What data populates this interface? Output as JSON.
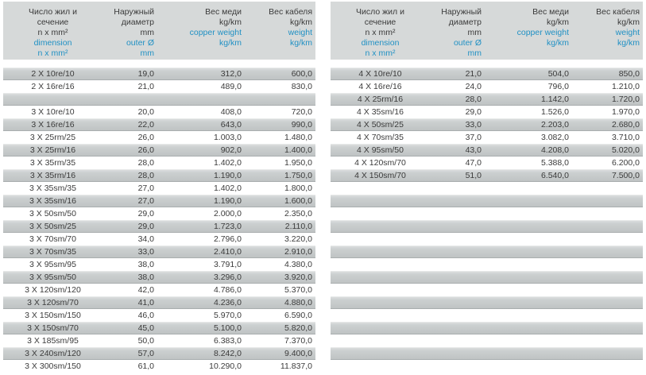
{
  "colors": {
    "header_bg": "#d6d9d9",
    "row_gray": "#c6caca",
    "text_black": "#3b3b3b",
    "text_blue": "#2191c4"
  },
  "tables": [
    {
      "id": "left",
      "header": [
        {
          "key": "dimension",
          "black": [
            "Число жил и",
            "сечение",
            "n x mm²"
          ],
          "blue": [
            "dimension",
            "n x mm²"
          ]
        },
        {
          "key": "outer-diameter",
          "black": [
            "Наружный",
            "диаметр",
            "mm"
          ],
          "blue": [
            "outer Ø",
            "mm"
          ]
        },
        {
          "key": "copper-weight",
          "black": [
            "Вес меди",
            "kg/km"
          ],
          "blue": [
            "copper weight",
            "kg/km"
          ]
        },
        {
          "key": "cable-weight",
          "black": [
            "Вес кабеля",
            "kg/km"
          ],
          "blue": [
            "weight",
            "kg/km"
          ]
        }
      ],
      "rows": [
        [
          "2 X 10re/10",
          "19,0",
          "312,0",
          "600,0"
        ],
        [
          "2 X 16re/16",
          "21,0",
          "489,0",
          "830,0"
        ],
        [
          "",
          "",
          "",
          ""
        ],
        [
          "3 X 10re/10",
          "20,0",
          "408,0",
          "720,0"
        ],
        [
          "3 X 16re/16",
          "22,0",
          "643,0",
          "990,0"
        ],
        [
          "3 X 25rm/25",
          "26,0",
          "1.003,0",
          "1.480,0"
        ],
        [
          "3 X 25rm/16",
          "26,0",
          "902,0",
          "1.400,0"
        ],
        [
          "3 X 35rm/35",
          "28,0",
          "1.402,0",
          "1.950,0"
        ],
        [
          "3 X 35rm/16",
          "28,0",
          "1.190,0",
          "1.750,0"
        ],
        [
          "3 X 35sm/35",
          "27,0",
          "1.402,0",
          "1.800,0"
        ],
        [
          "3 X 35sm/16",
          "27,0",
          "1.190,0",
          "1.600,0"
        ],
        [
          "3 X 50sm/50",
          "29,0",
          "2.000,0",
          "2.350,0"
        ],
        [
          "3 X 50sm/25",
          "29,0",
          "1.723,0",
          "2.110,0"
        ],
        [
          "3 X 70sm/70",
          "34,0",
          "2.796,0",
          "3.220,0"
        ],
        [
          "3 X 70sm/35",
          "33,0",
          "2.410,0",
          "2.910,0"
        ],
        [
          "3 X 95sm/95",
          "38,0",
          "3.791,0",
          "4.380,0"
        ],
        [
          "3 X 95sm/50",
          "38,0",
          "3.296,0",
          "3.920,0"
        ],
        [
          "3 X 120sm/120",
          "42,0",
          "4.786,0",
          "5.370,0"
        ],
        [
          "3 X 120sm/70",
          "41,0",
          "4.236,0",
          "4.880,0"
        ],
        [
          "3 X 150sm/150",
          "46,0",
          "5.970,0",
          "6.590,0"
        ],
        [
          "3 X 150sm/70",
          "45,0",
          "5.100,0",
          "5.820,0"
        ],
        [
          "3 X 185sm/95",
          "50,0",
          "6.383,0",
          "7.370,0"
        ],
        [
          "3 X 240sm/120",
          "57,0",
          "8.242,0",
          "9.400,0"
        ],
        [
          "3 X 300sm/150",
          "61,0",
          "10.290,0",
          "11.837,0"
        ]
      ]
    },
    {
      "id": "right",
      "header": [
        {
          "key": "dimension",
          "black": [
            "Число жил и",
            "сечение",
            "n x mm²"
          ],
          "blue": [
            "dimension",
            "n x mm²"
          ]
        },
        {
          "key": "outer-diameter",
          "black": [
            "Наружный",
            "диаметр",
            "mm"
          ],
          "blue": [
            "outer Ø",
            "mm"
          ]
        },
        {
          "key": "copper-weight",
          "black": [
            "Вес меди",
            "kg/km"
          ],
          "blue": [
            "copper weight",
            "kg/km"
          ]
        },
        {
          "key": "cable-weight",
          "black": [
            "Вес кабеля",
            "kg/km"
          ],
          "blue": [
            "weight",
            "kg/km"
          ]
        }
      ],
      "rows": [
        [
          "4 X 10re/10",
          "21,0",
          "504,0",
          "850,0"
        ],
        [
          "4 X 16re/16",
          "24,0",
          "796,0",
          "1.210,0"
        ],
        [
          "4 X 25rm/16",
          "28,0",
          "1.142,0",
          "1.720,0"
        ],
        [
          "4 X 35sm/16",
          "29,0",
          "1.526,0",
          "1.970,0"
        ],
        [
          "4 X 50sm/25",
          "33,0",
          "2.203,0",
          "2.680,0"
        ],
        [
          "4 X 70sm/35",
          "37,0",
          "3.082,0",
          "3.710,0"
        ],
        [
          "4 X 95sm/50",
          "43,0",
          "4.208,0",
          "5.020,0"
        ],
        [
          "4 X 120sm/70",
          "47,0",
          "5.388,0",
          "6.200,0"
        ],
        [
          "4 X 150sm/70",
          "51,0",
          "6.540,0",
          "7.500,0"
        ],
        [
          "",
          "",
          "",
          ""
        ],
        [
          "",
          "",
          "",
          ""
        ],
        [
          "",
          "",
          "",
          ""
        ],
        [
          "",
          "",
          "",
          ""
        ],
        [
          "",
          "",
          "",
          ""
        ],
        [
          "",
          "",
          "",
          ""
        ],
        [
          "",
          "",
          "",
          ""
        ],
        [
          "",
          "",
          "",
          ""
        ],
        [
          "",
          "",
          "",
          ""
        ],
        [
          "",
          "",
          "",
          ""
        ],
        [
          "",
          "",
          "",
          ""
        ],
        [
          "",
          "",
          "",
          ""
        ],
        [
          "",
          "",
          "",
          ""
        ],
        [
          "",
          "",
          "",
          ""
        ],
        [
          "",
          "",
          "",
          ""
        ]
      ]
    }
  ]
}
